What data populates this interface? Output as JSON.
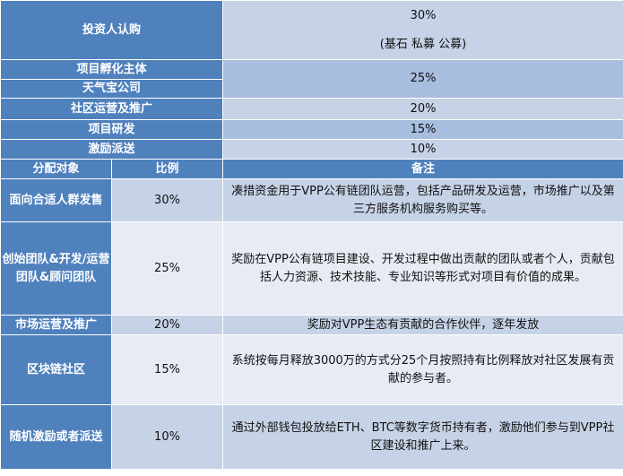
{
  "top": {
    "investor_label": "投资人认购",
    "investor_pct": "30%",
    "investor_sub": "(基石 私募 公募)",
    "incubator_label": "项目孵化主体",
    "company_label": "天气宝公司",
    "incubator_pct": "25%",
    "community_label": "社区运营及推广",
    "community_pct": "20%",
    "rnd_label": "项目研发",
    "rnd_pct": "15%",
    "incentive_label": "激励派送",
    "incentive_pct": "10%"
  },
  "table": {
    "headers": [
      "分配对象",
      "比例",
      "备注"
    ],
    "rows": [
      {
        "target": "面向合适人群发售",
        "ratio": "30%",
        "note": "凑措资金用于VPP公有链团队运营，包括产品研发及运营，市场推广以及第三方服务机构服务购买等。"
      },
      {
        "target": "创始团队&开发/运营团队&顾问团队",
        "ratio": "25%",
        "note": "奖励在VPP公有链项目建设、开发过程中做出贡献的团队或者个人，贡献包括人力资源、技术技能、专业知识等形式对项目有价值的成果。"
      },
      {
        "target": "市场运营及推广",
        "ratio": "20%",
        "note": "奖励对VPP生态有贡献的合作伙伴，逐年发放"
      },
      {
        "target": "区块链社区",
        "ratio": "15%",
        "note": "系统按每月释放3000万的方式分25个月按照持有比例释放对社区发展有贡献的参与者。"
      },
      {
        "target": "随机激励或者派送",
        "ratio": "10%",
        "note": "通过外部钱包投放给ETH、BTC等数字货币持有者，激励他们参与到VPP社区建设和推广上来。"
      }
    ]
  }
}
